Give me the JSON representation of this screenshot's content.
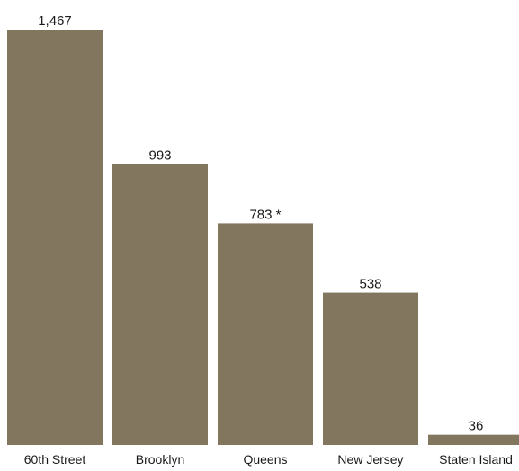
{
  "chart_data": {
    "type": "bar",
    "categories": [
      "60th Street",
      "Brooklyn",
      "Queens",
      "New Jersey",
      "Staten Island"
    ],
    "values": [
      1467,
      993,
      783,
      538,
      36
    ],
    "data_labels": [
      "1,467",
      "993",
      "783 *",
      "538",
      "36"
    ],
    "title": "",
    "xlabel": "",
    "ylabel": "",
    "ylim": [
      0,
      1467
    ],
    "grid": false,
    "legend": "none",
    "bar_color": "#83765f"
  }
}
